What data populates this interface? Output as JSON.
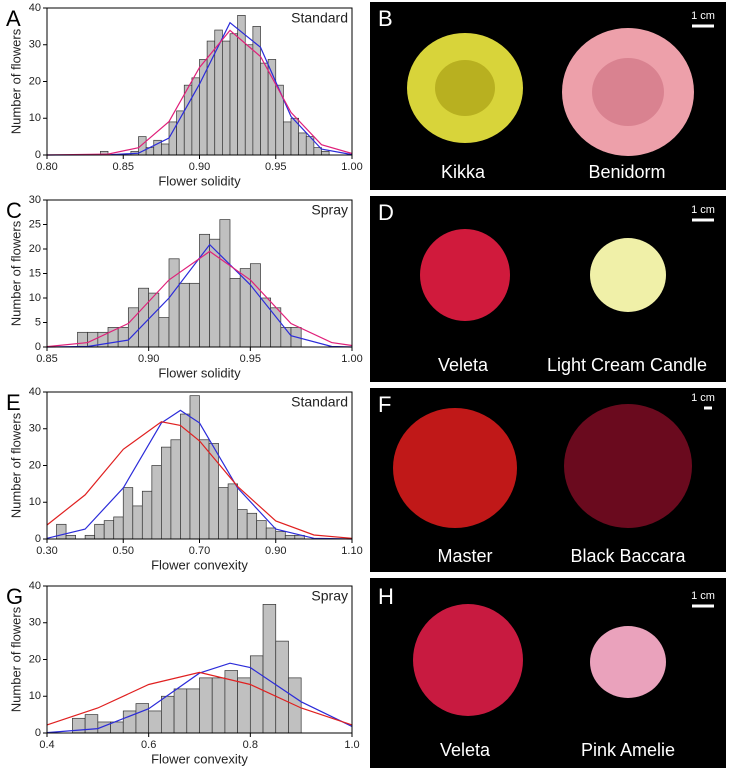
{
  "chart_data": [
    {
      "type": "histogram",
      "panel_label": "A",
      "annotation": "Standard",
      "x_label": "Flower solidity",
      "y_label": "Number of flowers",
      "bins": [
        0.835,
        0.84,
        0.845,
        0.85,
        0.855,
        0.86,
        0.865,
        0.87,
        0.875,
        0.88,
        0.885,
        0.89,
        0.895,
        0.9,
        0.905,
        0.91,
        0.915,
        0.92,
        0.925,
        0.93,
        0.935,
        0.94,
        0.945,
        0.95,
        0.955,
        0.96,
        0.965,
        0.97,
        0.975,
        0.98,
        0.985
      ],
      "values": [
        1,
        0,
        0,
        0,
        1,
        5,
        2,
        4,
        3,
        9,
        12,
        19,
        21,
        26,
        31,
        34,
        31,
        33,
        38,
        30,
        35,
        25,
        26,
        19,
        9,
        10,
        6,
        5,
        2,
        1
      ],
      "color": "#c0c0c0",
      "curves": [
        {
          "color": "#2b2bd9",
          "x": [
            0.8,
            0.84,
            0.86,
            0.88,
            0.9,
            0.92,
            0.94,
            0.96,
            0.98,
            1.0
          ],
          "values": [
            0,
            0.02,
            0.5,
            4.6,
            19.3,
            36,
            29.3,
            10.5,
            1.6,
            0.1
          ]
        },
        {
          "color": "#e0207a",
          "x": [
            0.8,
            0.84,
            0.86,
            0.88,
            0.9,
            0.92,
            0.94,
            0.96,
            0.98,
            1.0
          ],
          "values": [
            0,
            0.24,
            2,
            9.1,
            23.8,
            33.9,
            26.8,
            11.6,
            2.8,
            0.4
          ]
        }
      ],
      "xlim": [
        0.8,
        1.0
      ],
      "xticks": [
        {
          "value": 0.8,
          "label": "0.80"
        },
        0.85,
        {
          "value": 0.9,
          "label": "0.90"
        },
        0.95,
        {
          "value": 1.0,
          "label": "1.00"
        }
      ],
      "ylim": [
        0,
        40
      ],
      "yticks": [
        0,
        10,
        20,
        30,
        40
      ]
    },
    {
      "type": "histogram",
      "panel_label": "C",
      "annotation": "Spray",
      "x_label": "Flower solidity",
      "y_label": "Number of flowers",
      "bins": [
        0.865,
        0.87,
        0.875,
        0.88,
        0.885,
        0.89,
        0.895,
        0.9,
        0.905,
        0.91,
        0.915,
        0.92,
        0.925,
        0.93,
        0.935,
        0.94,
        0.945,
        0.95,
        0.955,
        0.96,
        0.965,
        0.97,
        0.975
      ],
      "values": [
        3,
        3,
        3,
        4,
        4,
        8,
        12,
        11,
        6,
        18,
        13,
        13,
        23,
        22,
        26,
        14,
        16,
        17,
        10,
        8,
        4,
        4
      ],
      "color": "#c0c0c0",
      "curves": [
        {
          "color": "#2b2bd9",
          "x": [
            0.85,
            0.87,
            0.89,
            0.91,
            0.93,
            0.95,
            0.97,
            0.99,
            1.0
          ],
          "values": [
            0,
            0.1,
            1.4,
            10,
            20.9,
            12.7,
            2.3,
            0.1,
            0
          ]
        },
        {
          "color": "#e0207a",
          "x": [
            0.85,
            0.87,
            0.89,
            0.91,
            0.93,
            0.95,
            0.97,
            0.99,
            1.0
          ],
          "values": [
            0.08,
            0.9,
            4.8,
            13.7,
            19.5,
            13.7,
            4.8,
            0.9,
            0.3
          ]
        }
      ],
      "xlim": [
        0.85,
        1.0
      ],
      "xticks": [
        0.85,
        {
          "value": 0.9,
          "label": "0.90"
        },
        0.95,
        {
          "value": 1.0,
          "label": "1.00"
        }
      ],
      "ylim": [
        0,
        30
      ],
      "yticks": [
        0,
        5,
        10,
        15,
        20,
        25,
        30
      ]
    },
    {
      "type": "histogram",
      "panel_label": "E",
      "annotation": "Standard",
      "x_label": "Flower convexity",
      "y_label": "Number of flowers",
      "bins": [
        0.325,
        0.35,
        0.375,
        0.4,
        0.425,
        0.45,
        0.475,
        0.5,
        0.525,
        0.55,
        0.575,
        0.6,
        0.625,
        0.65,
        0.675,
        0.7,
        0.725,
        0.75,
        0.775,
        0.8,
        0.825,
        0.85,
        0.875,
        0.9,
        0.925,
        0.95,
        0.975
      ],
      "values": [
        4,
        1,
        0,
        1,
        4,
        5,
        6,
        14,
        9,
        13,
        20,
        25,
        27,
        34,
        39,
        27,
        26,
        14,
        15,
        8,
        7,
        5,
        3,
        2,
        1,
        1
      ],
      "color": "#c0c0c0",
      "curves": [
        {
          "color": "#2b2bd9",
          "x": [
            0.3,
            0.4,
            0.5,
            0.6,
            0.65,
            0.7,
            0.8,
            0.9,
            1.0,
            1.1
          ],
          "values": [
            0.2,
            2.7,
            13.9,
            31.6,
            35,
            31.6,
            13.9,
            2.7,
            0.2,
            0
          ]
        },
        {
          "color": "#e02020",
          "x": [
            0.3,
            0.4,
            0.5,
            0.6,
            0.65,
            0.7,
            0.8,
            0.9,
            1.0,
            1.1
          ],
          "values": [
            3.8,
            12,
            24.4,
            31.9,
            30.9,
            26.7,
            14.3,
            4.9,
            1.1,
            0.2
          ]
        }
      ],
      "xlim": [
        0.3,
        1.1
      ],
      "xticks": [
        {
          "value": 0.3,
          "label": "0.30"
        },
        {
          "value": 0.5,
          "label": "0.50"
        },
        {
          "value": 0.7,
          "label": "0.70"
        },
        {
          "value": 0.9,
          "label": "0.90"
        },
        {
          "value": 1.1,
          "label": "1.10"
        }
      ],
      "ylim": [
        0,
        40
      ],
      "yticks": [
        0,
        10,
        20,
        30,
        40
      ]
    },
    {
      "type": "histogram",
      "panel_label": "G",
      "annotation": "Spray",
      "x_label": "Flower convexity",
      "y_label": "Number of flowers",
      "bins": [
        0.45,
        0.475,
        0.5,
        0.525,
        0.55,
        0.575,
        0.6,
        0.625,
        0.65,
        0.675,
        0.7,
        0.725,
        0.75,
        0.775,
        0.8,
        0.825,
        0.85,
        0.875,
        0.9
      ],
      "values": [
        4,
        5,
        3,
        3,
        6,
        8,
        6,
        10,
        12,
        12,
        15,
        15,
        17,
        15,
        21,
        35,
        25,
        15
      ],
      "color": "#c0c0c0",
      "curves": [
        {
          "color": "#2b2bd9",
          "x": [
            0.4,
            0.5,
            0.6,
            0.7,
            0.76,
            0.8,
            0.9,
            1.0
          ],
          "values": [
            0.1,
            1.2,
            6.6,
            16.3,
            19,
            17.8,
            8.5,
            1.8
          ]
        },
        {
          "color": "#e02020",
          "x": [
            0.4,
            0.5,
            0.6,
            0.7,
            0.8,
            0.9,
            1.0
          ],
          "values": [
            2.2,
            6.8,
            13.2,
            16.5,
            13.2,
            6.8,
            2.2
          ]
        }
      ],
      "xlim": [
        0.4,
        1.0
      ],
      "xticks": [
        0.4,
        0.6,
        0.8,
        {
          "value": 1.0,
          "label": "1.0"
        }
      ],
      "ylim": [
        0,
        40
      ],
      "yticks": [
        0,
        10,
        20,
        30,
        40
      ]
    }
  ],
  "photo_panels": [
    {
      "panel_label": "B",
      "scale_label": "1 cm",
      "labels": [
        "Kikka",
        "Benidorm"
      ]
    },
    {
      "panel_label": "D",
      "scale_label": "1 cm",
      "labels": [
        "Veleta",
        "Light Cream Candle"
      ]
    },
    {
      "panel_label": "F",
      "scale_label": "1 cm",
      "labels": [
        "Master",
        "Black Baccara"
      ]
    },
    {
      "panel_label": "H",
      "scale_label": "1 cm",
      "labels": [
        "Veleta",
        "Pink Amelie"
      ]
    }
  ]
}
